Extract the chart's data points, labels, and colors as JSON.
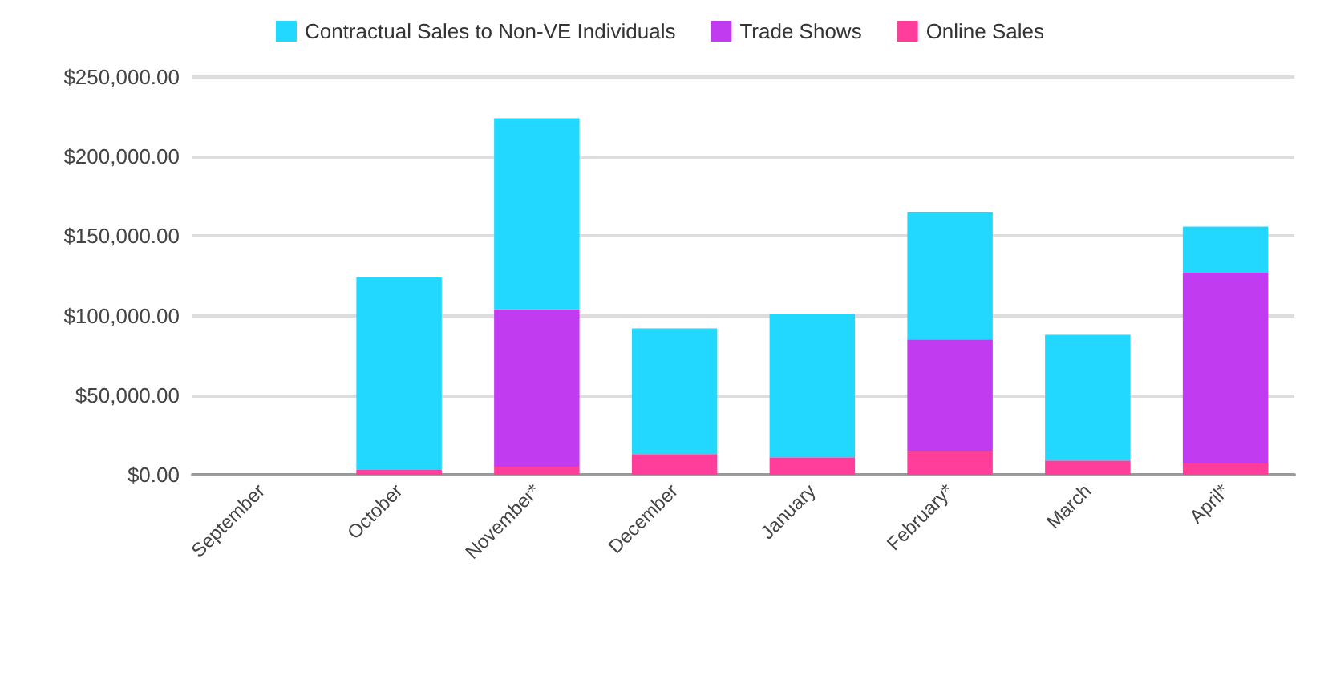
{
  "chart_data": {
    "type": "bar",
    "stacked": true,
    "categories": [
      "September",
      "October",
      "November*",
      "December",
      "January",
      "February*",
      "March",
      "April*"
    ],
    "series": [
      {
        "name": "Online Sales",
        "color": "#ff3d9a",
        "values": [
          0,
          3000,
          5000,
          13000,
          11000,
          15000,
          9000,
          7000
        ]
      },
      {
        "name": "Trade Shows",
        "color": "#c13bf0",
        "values": [
          0,
          0,
          99000,
          0,
          0,
          70000,
          0,
          120000
        ]
      },
      {
        "name": "Contractual Sales to Non-VE Individuals",
        "color": "#22d8ff",
        "values": [
          0,
          121000,
          120000,
          79000,
          90000,
          80000,
          79000,
          29000
        ]
      }
    ],
    "ylim": [
      0,
      250000
    ],
    "yticks": [
      {
        "value": 0,
        "label": "$0.00"
      },
      {
        "value": 50000,
        "label": "$50,000.00"
      },
      {
        "value": 100000,
        "label": "$100,000.00"
      },
      {
        "value": 150000,
        "label": "$150,000.00"
      },
      {
        "value": 200000,
        "label": "$200,000.00"
      },
      {
        "value": 250000,
        "label": "$250,000.00"
      }
    ],
    "grid": true,
    "legend": "top"
  }
}
